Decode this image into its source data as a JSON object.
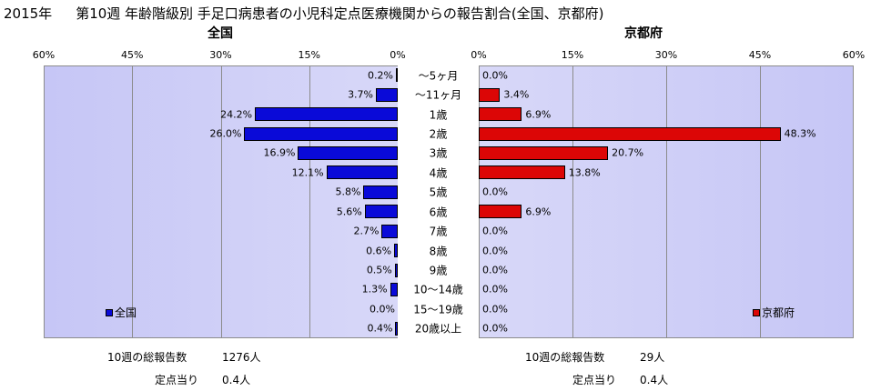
{
  "header": {
    "year": "2015年",
    "title": "第10週 年齢階級別 手足口病患者の小児科定点医療機関からの報告割合(全国、京都府)"
  },
  "chart_data": {
    "type": "bar",
    "categories": [
      "～5ヶ月",
      "～11ヶ月",
      "1歳",
      "2歳",
      "3歳",
      "4歳",
      "5歳",
      "6歳",
      "7歳",
      "8歳",
      "9歳",
      "10～14歳",
      "15～19歳",
      "20歳以上"
    ],
    "x_tick_labels": [
      "60%",
      "45%",
      "30%",
      "15%",
      "0%",
      "15%",
      "30%",
      "45%",
      "60%"
    ],
    "xlim": [
      0,
      60
    ],
    "grid": true,
    "series": [
      {
        "name": "全国",
        "panel_title": "全国",
        "color": "#0a0ad8",
        "values": [
          0.2,
          3.7,
          24.2,
          26.0,
          16.9,
          12.1,
          5.8,
          5.6,
          2.7,
          0.6,
          0.5,
          1.3,
          0.0,
          0.4
        ],
        "labels": [
          "0.2%",
          "3.7%",
          "24.2%",
          "26.0%",
          "16.9%",
          "12.1%",
          "5.8%",
          "5.6%",
          "2.7%",
          "0.6%",
          "0.5%",
          "1.3%",
          "0.0%",
          "0.4%"
        ],
        "legend": "全国"
      },
      {
        "name": "京都府",
        "panel_title": "京都府",
        "color": "#dc0606",
        "values": [
          0.0,
          3.4,
          6.9,
          48.3,
          20.7,
          13.8,
          0.0,
          6.9,
          0.0,
          0.0,
          0.0,
          0.0,
          0.0,
          0.0
        ],
        "labels": [
          "0.0%",
          "3.4%",
          "6.9%",
          "48.3%",
          "20.7%",
          "13.8%",
          "0.0%",
          "6.9%",
          "0.0%",
          "0.0%",
          "0.0%",
          "0.0%",
          "0.0%",
          "0.0%"
        ],
        "legend": "京都府"
      }
    ]
  },
  "footer": {
    "left": {
      "total_label": "10週の総報告数",
      "total_value": "1276人",
      "per_label": "定点当り",
      "per_value": "0.4人"
    },
    "right": {
      "total_label": "10週の総報告数",
      "total_value": "29人",
      "per_label": "定点当り",
      "per_value": "0.4人"
    }
  }
}
